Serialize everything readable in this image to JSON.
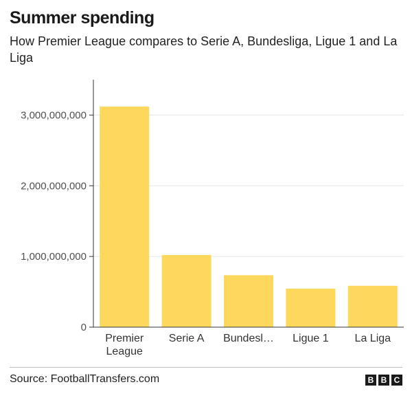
{
  "header": {
    "title": "Summer spending",
    "subtitle": "How Premier League compares to Serie A, Bundesliga, Ligue 1 and La Liga"
  },
  "chart_data": {
    "type": "bar",
    "categories": [
      "Premier League",
      "Serie A",
      "Bundesliga",
      "Ligue 1",
      "La Liga"
    ],
    "category_labels": [
      [
        "Premier",
        "League"
      ],
      [
        "Serie A"
      ],
      [
        "Bundesl…"
      ],
      [
        "Ligue 1"
      ],
      [
        "La Liga"
      ]
    ],
    "values": [
      3120000000,
      1020000000,
      735000000,
      545000000,
      585000000
    ],
    "y_ticks": [
      0,
      1000000000,
      2000000000,
      3000000000
    ],
    "y_tick_labels": [
      "0",
      "1,000,000,000",
      "2,000,000,000",
      "3,000,000,000"
    ],
    "ylim": [
      0,
      3500000000
    ],
    "bar_color": "#fdd85d",
    "grid": true,
    "grid_color": "#e6e6e6",
    "axis_color": "#333333"
  },
  "footer": {
    "source": "Source: FootballTransfers.com",
    "logo_letters": [
      "B",
      "B",
      "C"
    ]
  }
}
